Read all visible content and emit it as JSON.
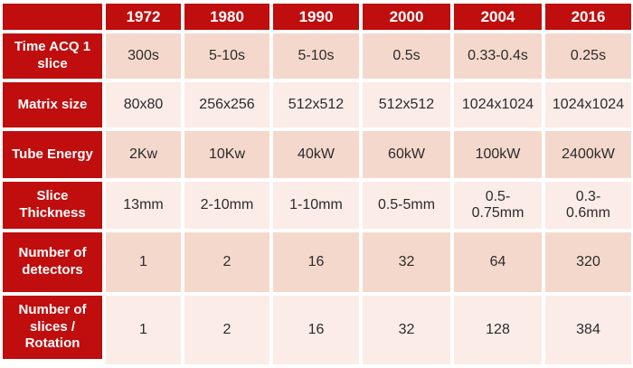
{
  "colors": {
    "header_red": "#C00D0D",
    "row_band_dark": "#F5D8CC",
    "row_band_light": "#FBECE7",
    "gutter_white": "#FFFFFF",
    "header_text": "#FFFFFF",
    "data_text": "#2B2B2B"
  },
  "chart_data": {
    "type": "table",
    "categories": [
      "1972",
      "1980",
      "1990",
      "2000",
      "2004",
      "2016"
    ],
    "series": [
      {
        "name": "Time ACQ 1 slice",
        "values": [
          "300s",
          "5-10s",
          "5-10s",
          "0.5s",
          "0.33-0.4s",
          "0.25s"
        ]
      },
      {
        "name": "Matrix size",
        "values": [
          "80x80",
          "256x256",
          "512x512",
          "512x512",
          "1024x1024",
          "1024x1024"
        ]
      },
      {
        "name": "Tube Energy",
        "values": [
          "2Kw",
          "10Kw",
          "40kW",
          "60kW",
          "100kW",
          "2400kW"
        ]
      },
      {
        "name": "Slice Thickness",
        "values": [
          "13mm",
          "2-10mm",
          "1-10mm",
          "0.5-5mm",
          "0.5-0.75mm",
          "0.3-0.6mm"
        ]
      },
      {
        "name": "Number of detectors",
        "values": [
          "1",
          "2",
          "16",
          "32",
          "64",
          "320"
        ]
      },
      {
        "name": "Number of slices / Rotation",
        "values": [
          "1",
          "2",
          "16",
          "32",
          "128",
          "384"
        ]
      }
    ],
    "layout": {
      "first_column": "row labels",
      "banding": "alternating pink rows",
      "grid": "white gutters between cells"
    }
  }
}
